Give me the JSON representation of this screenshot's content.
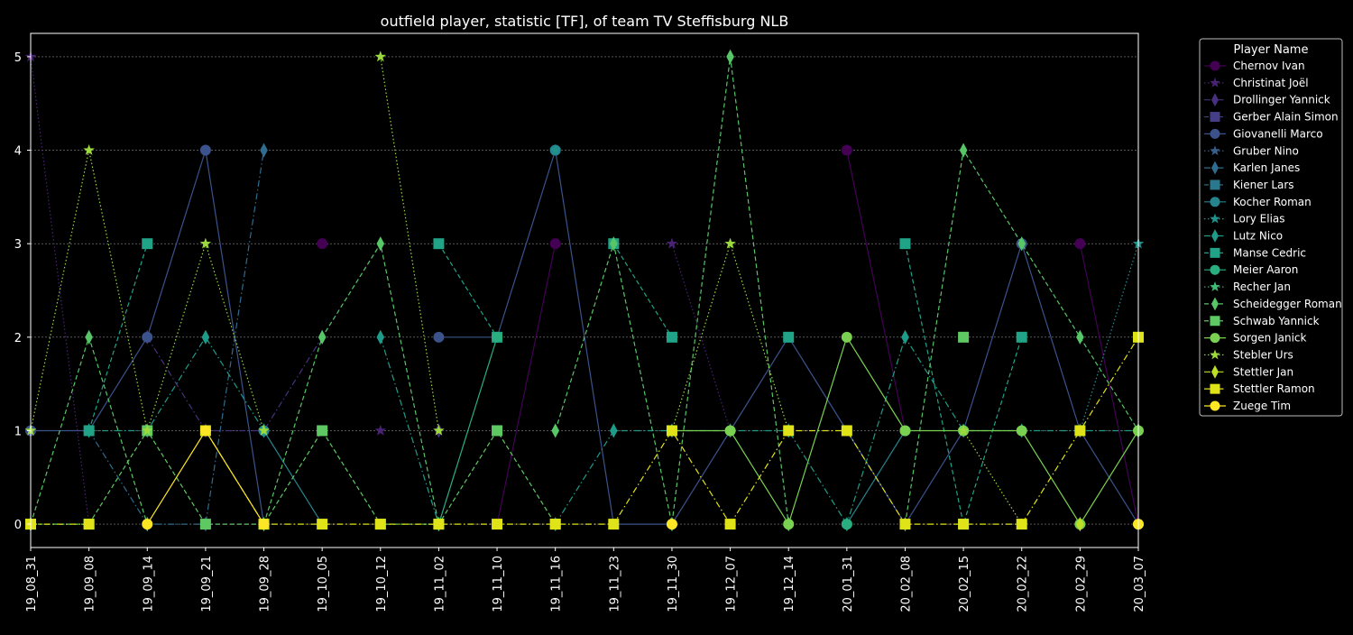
{
  "chart_data": {
    "type": "line",
    "title": "outfield player, statistic [TF], of team TV Steffisburg NLB",
    "xlabel": "",
    "ylabel": "",
    "ylim": [
      -0.25,
      5.25
    ],
    "yticks": [
      0,
      1,
      2,
      3,
      4,
      5
    ],
    "grid": "horizontal dashed",
    "legend_title": "Player Name",
    "legend_position": "outside right",
    "categories": [
      "19_08_31",
      "19_09_08",
      "19_09_14",
      "19_09_21",
      "19_09_28",
      "19_10_05",
      "19_10_12",
      "19_11_02",
      "19_11_10",
      "19_11_16",
      "19_11_23",
      "19_11_30",
      "19_12_07",
      "19_12_14",
      "20_01_31",
      "20_02_08",
      "20_02_15",
      "20_02_22",
      "20_02_29",
      "20_03_07"
    ],
    "series": [
      {
        "name": "Chernov Ivan",
        "color": "#440154",
        "marker": "circle",
        "dash": "solid",
        "values": [
          null,
          null,
          null,
          null,
          null,
          3,
          null,
          null,
          0,
          3,
          null,
          null,
          null,
          null,
          4,
          1,
          null,
          null,
          3,
          0
        ]
      },
      {
        "name": "Christinat Joël",
        "color": "#482374",
        "marker": "star",
        "dash": "dotted",
        "values": [
          5,
          0,
          null,
          null,
          null,
          null,
          1,
          null,
          null,
          null,
          null,
          3,
          1,
          null,
          null,
          null,
          null,
          null,
          null,
          null
        ]
      },
      {
        "name": "Drollinger Yannick",
        "color": "#47317e",
        "marker": "diamond",
        "dash": "dashdot",
        "values": [
          null,
          null,
          2,
          1,
          1,
          2,
          null,
          1,
          null,
          null,
          null,
          null,
          null,
          null,
          null,
          null,
          null,
          null,
          null,
          null
        ]
      },
      {
        "name": "Gerber Alain Simon",
        "color": "#433e85",
        "marker": "square",
        "dash": "dashed",
        "values": [
          null,
          null,
          null,
          null,
          null,
          null,
          null,
          null,
          null,
          null,
          null,
          null,
          null,
          null,
          null,
          null,
          null,
          null,
          null,
          null
        ]
      },
      {
        "name": "Giovanelli Marco",
        "color": "#3b528b",
        "marker": "circle",
        "dash": "solid",
        "values": [
          1,
          1,
          2,
          4,
          0,
          null,
          null,
          2,
          2,
          4,
          0,
          0,
          1,
          2,
          1,
          0,
          1,
          3,
          1,
          0
        ]
      },
      {
        "name": "Gruber Nino",
        "color": "#355f8d",
        "marker": "star",
        "dash": "dotted",
        "values": [
          null,
          null,
          null,
          null,
          null,
          null,
          null,
          null,
          null,
          null,
          null,
          null,
          null,
          null,
          null,
          null,
          null,
          null,
          null,
          null
        ]
      },
      {
        "name": "Karlen Janes",
        "color": "#2f6c8e",
        "marker": "diamond",
        "dash": "dashdot",
        "values": [
          null,
          1,
          0,
          0,
          4,
          null,
          null,
          null,
          null,
          null,
          null,
          null,
          null,
          null,
          null,
          null,
          null,
          null,
          null,
          null
        ]
      },
      {
        "name": "Kiener Lars",
        "color": "#2a788e",
        "marker": "square",
        "dash": "dashed",
        "values": [
          null,
          null,
          null,
          null,
          null,
          null,
          null,
          null,
          null,
          null,
          null,
          null,
          null,
          null,
          null,
          null,
          null,
          null,
          null,
          null
        ]
      },
      {
        "name": "Kocher Roman",
        "color": "#25848e",
        "marker": "circle",
        "dash": "solid",
        "values": [
          null,
          null,
          null,
          null,
          1,
          0,
          null,
          null,
          null,
          4,
          null,
          null,
          null,
          null,
          0,
          1,
          null,
          null,
          null,
          null
        ]
      },
      {
        "name": "Lory Elias",
        "color": "#21918c",
        "marker": "star",
        "dash": "dotted",
        "values": [
          null,
          null,
          null,
          null,
          null,
          null,
          null,
          null,
          null,
          4,
          null,
          null,
          null,
          null,
          null,
          null,
          null,
          null,
          1,
          3
        ]
      },
      {
        "name": "Lutz Nico",
        "color": "#1e9c89",
        "marker": "diamond",
        "dash": "dashdot",
        "values": [
          null,
          1,
          1,
          2,
          1,
          null,
          2,
          0,
          null,
          0,
          1,
          1,
          1,
          1,
          0,
          2,
          1,
          1,
          1,
          1
        ]
      },
      {
        "name": "Manse Cedric",
        "color": "#20a386",
        "marker": "square",
        "dash": "dashed",
        "values": [
          null,
          1,
          3,
          null,
          null,
          null,
          null,
          3,
          2,
          null,
          3,
          2,
          null,
          2,
          null,
          3,
          0,
          2,
          null,
          null
        ]
      },
      {
        "name": "Meier Aaron",
        "color": "#29af7f",
        "marker": "circle",
        "dash": "solid",
        "values": [
          null,
          null,
          null,
          null,
          null,
          null,
          null,
          0,
          2,
          null,
          null,
          null,
          null,
          null,
          0,
          null,
          null,
          null,
          null,
          null
        ]
      },
      {
        "name": "Recher Jan",
        "color": "#3dbc74",
        "marker": "star",
        "dash": "dotted",
        "values": [
          null,
          null,
          null,
          null,
          null,
          null,
          null,
          null,
          null,
          null,
          null,
          null,
          null,
          null,
          null,
          null,
          null,
          null,
          null,
          null
        ]
      },
      {
        "name": "Scheidegger Roman",
        "color": "#56c667",
        "marker": "diamond",
        "dash": "dashed",
        "values": [
          0,
          2,
          0,
          null,
          0,
          2,
          3,
          0,
          null,
          1,
          3,
          0,
          5,
          0,
          null,
          0,
          4,
          3,
          2,
          1
        ]
      },
      {
        "name": "Schwab Yannick",
        "color": "#5ec962",
        "marker": "square",
        "dash": "dashed",
        "values": [
          0,
          0,
          1,
          0,
          0,
          1,
          0,
          0,
          1,
          0,
          null,
          null,
          null,
          null,
          null,
          null,
          2,
          null,
          null,
          null
        ]
      },
      {
        "name": "Sorgen Janick",
        "color": "#7ad151",
        "marker": "circle",
        "dash": "solid",
        "values": [
          null,
          null,
          null,
          null,
          null,
          null,
          null,
          null,
          null,
          null,
          null,
          1,
          1,
          0,
          2,
          1,
          1,
          1,
          0,
          1
        ]
      },
      {
        "name": "Stebler Urs",
        "color": "#9bd93c",
        "marker": "star",
        "dash": "dotted",
        "values": [
          1,
          4,
          1,
          3,
          1,
          null,
          5,
          1,
          null,
          null,
          null,
          1,
          3,
          1,
          null,
          null,
          1,
          0,
          null,
          null
        ]
      },
      {
        "name": "Stettler Jan",
        "color": "#bddf26",
        "marker": "diamond",
        "dash": "dashdot",
        "values": [
          null,
          null,
          null,
          null,
          null,
          null,
          null,
          null,
          null,
          null,
          null,
          null,
          null,
          null,
          null,
          null,
          null,
          null,
          0,
          null
        ]
      },
      {
        "name": "Stettler Ramon",
        "color": "#dfe318",
        "marker": "square",
        "dash": "dashdot",
        "values": [
          0,
          0,
          null,
          1,
          0,
          0,
          0,
          0,
          0,
          0,
          0,
          1,
          0,
          1,
          1,
          0,
          0,
          0,
          1,
          2
        ]
      },
      {
        "name": "Zuege Tim",
        "color": "#fde725",
        "marker": "circle",
        "dash": "solid",
        "values": [
          null,
          null,
          0,
          1,
          0,
          null,
          null,
          null,
          null,
          null,
          null,
          0,
          null,
          null,
          null,
          null,
          null,
          null,
          null,
          0
        ]
      }
    ]
  }
}
